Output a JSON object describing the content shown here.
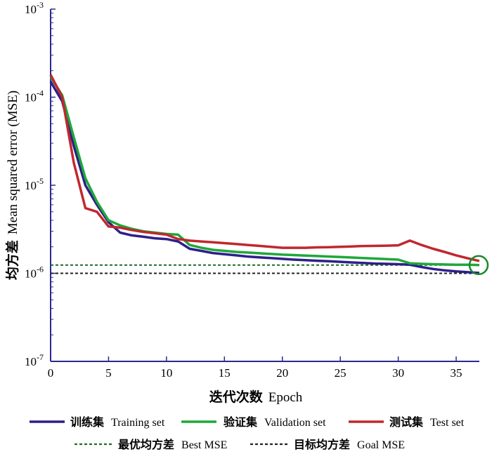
{
  "chart_data": {
    "type": "line",
    "xlabel_cn": "迭代次数",
    "xlabel_en": "Epoch",
    "ylabel_cn": "均方差",
    "ylabel_en": "Mean squared error (MSE)",
    "xlim": [
      0,
      37
    ],
    "ylim": [
      1e-07,
      0.001
    ],
    "yscale": "log",
    "xticks": [
      "0",
      "5",
      "10",
      "15",
      "20",
      "25",
      "30",
      "35"
    ],
    "ytick_base": "10",
    "ytick_exponents": [
      "-7",
      "-6",
      "-5",
      "-4",
      "-3"
    ],
    "series": [
      {
        "name_cn": "训练集",
        "name_en": "Training set",
        "color": "#2e1f8a",
        "x": [
          0,
          1,
          2,
          3,
          4,
          5,
          6,
          7,
          8,
          9,
          10,
          11,
          12,
          13,
          14,
          15,
          16,
          17,
          18,
          19,
          20,
          21,
          22,
          23,
          24,
          25,
          26,
          27,
          28,
          29,
          30,
          31,
          32,
          33,
          34,
          35,
          36,
          37
        ],
        "y": [
          0.00015,
          9e-05,
          2.8e-05,
          1e-05,
          6e-06,
          3.8e-06,
          2.9e-06,
          2.7e-06,
          2.6e-06,
          2.5e-06,
          2.45e-06,
          2.3e-06,
          1.9e-06,
          1.8e-06,
          1.7e-06,
          1.65e-06,
          1.6e-06,
          1.55e-06,
          1.52e-06,
          1.49e-06,
          1.46e-06,
          1.43e-06,
          1.41e-06,
          1.39e-06,
          1.37e-06,
          1.35e-06,
          1.33e-06,
          1.31e-06,
          1.29e-06,
          1.28e-06,
          1.27e-06,
          1.25e-06,
          1.18e-06,
          1.12e-06,
          1.08e-06,
          1.05e-06,
          1.03e-06,
          1.01e-06
        ]
      },
      {
        "name_cn": "验证集",
        "name_en": "Validation set",
        "color": "#1fa83a",
        "x": [
          0,
          1,
          2,
          3,
          4,
          5,
          6,
          7,
          8,
          9,
          10,
          11,
          12,
          13,
          14,
          15,
          16,
          17,
          18,
          19,
          20,
          21,
          22,
          23,
          24,
          25,
          26,
          27,
          28,
          29,
          30,
          31,
          32,
          33,
          34,
          35,
          36,
          37
        ],
        "y": [
          0.00017,
          0.000105,
          3.5e-05,
          1.2e-05,
          6.5e-06,
          4e-06,
          3.5e-06,
          3.2e-06,
          3e-06,
          2.9e-06,
          2.8e-06,
          2.75e-06,
          2.1e-06,
          1.95e-06,
          1.85e-06,
          1.8e-06,
          1.75e-06,
          1.72e-06,
          1.69e-06,
          1.66e-06,
          1.63e-06,
          1.61e-06,
          1.59e-06,
          1.57e-06,
          1.55e-06,
          1.53e-06,
          1.51e-06,
          1.49e-06,
          1.47e-06,
          1.45e-06,
          1.43e-06,
          1.3e-06,
          1.28e-06,
          1.27e-06,
          1.26e-06,
          1.25e-06,
          1.25e-06,
          1.24e-06
        ]
      },
      {
        "name_cn": "测试集",
        "name_en": "Test set",
        "color": "#c0282d",
        "x": [
          0,
          1,
          2,
          3,
          4,
          5,
          6,
          7,
          8,
          9,
          10,
          11,
          12,
          13,
          14,
          15,
          16,
          17,
          18,
          19,
          20,
          21,
          22,
          23,
          24,
          25,
          26,
          27,
          28,
          29,
          30,
          31,
          32,
          33,
          34,
          35,
          36,
          37
        ],
        "y": [
          0.00018,
          0.0001,
          1.8e-05,
          5.5e-06,
          5e-06,
          3.4e-06,
          3.3e-06,
          3.1e-06,
          2.95e-06,
          2.85e-06,
          2.75e-06,
          2.45e-06,
          2.35e-06,
          2.3e-06,
          2.25e-06,
          2.2e-06,
          2.15e-06,
          2.1e-06,
          2.05e-06,
          2e-06,
          1.95e-06,
          1.95e-06,
          1.95e-06,
          1.97e-06,
          1.98e-06,
          2e-06,
          2.02e-06,
          2.04e-06,
          2.05e-06,
          2.06e-06,
          2.08e-06,
          2.35e-06,
          2.1e-06,
          1.9e-06,
          1.75e-06,
          1.6e-06,
          1.48e-06,
          1.38e-06
        ]
      }
    ],
    "reference_lines": [
      {
        "name_cn": "最优均方差",
        "name_en": "Best MSE",
        "color": "#1f6b24",
        "y": 1.24e-06
      },
      {
        "name_cn": "目标均方差",
        "name_en": "Goal MSE",
        "color": "#222222",
        "y": 1e-06
      }
    ],
    "best_marker": {
      "x": 37,
      "y": 1.24e-06,
      "color": "#1a8a2c"
    },
    "grid": false
  }
}
